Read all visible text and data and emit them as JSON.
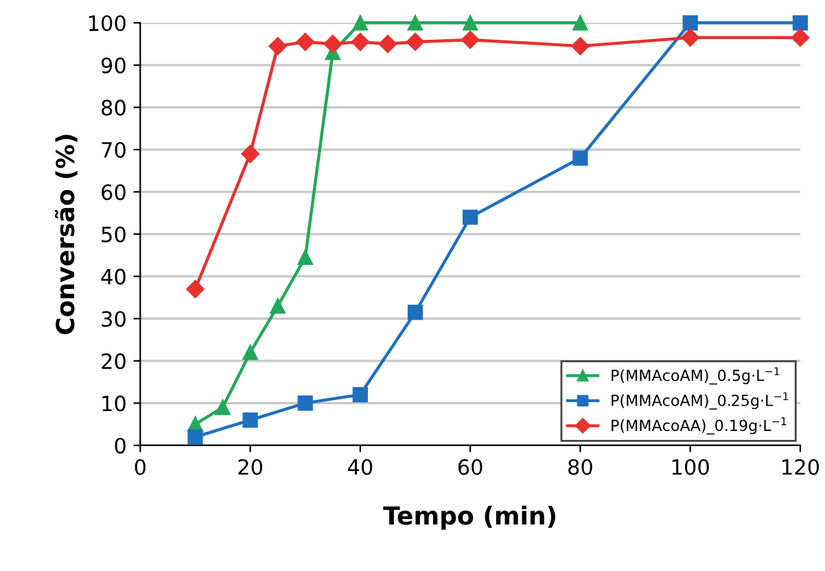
{
  "chart_data": {
    "type": "line",
    "xlabel": "Tempo (min)",
    "ylabel": "Conversão (%)",
    "xlim": [
      0,
      120
    ],
    "xticks": [
      0,
      20,
      40,
      60,
      80,
      100,
      120
    ],
    "ylim": [
      0,
      100
    ],
    "yticks": [
      0,
      10,
      20,
      30,
      40,
      50,
      60,
      70,
      80,
      90,
      100
    ],
    "grid": "y",
    "legend": "bottom right",
    "line_style": "solid",
    "series": [
      {
        "name": "P(MMAcoAM)_0.5g·L$^{−1}$",
        "color": "#22a85a",
        "marker": "triangle",
        "x": [
          10,
          15,
          20,
          25,
          30,
          35,
          40,
          50,
          60,
          80
        ],
        "values": [
          5,
          9,
          22,
          33,
          44.5,
          93,
          100,
          100,
          100,
          100
        ]
      },
      {
        "name": "P(MMAcoAM)_0.25g·L$^{−1}$",
        "color": "#1f6fbf",
        "marker": "square",
        "x": [
          10,
          20,
          30,
          40,
          50,
          60,
          80,
          100,
          120
        ],
        "values": [
          2,
          6,
          10,
          12,
          31.5,
          54,
          68,
          100,
          100
        ]
      },
      {
        "name": "P(MMAcoAA)_0.19g·L$^{−1}$",
        "color": "#e8302e",
        "marker": "diamond",
        "x": [
          10,
          20,
          25,
          30,
          35,
          40,
          45,
          50,
          60,
          80,
          100,
          120
        ],
        "values": [
          37,
          69,
          94.5,
          95.5,
          95,
          95.5,
          95,
          95.5,
          96,
          94.5,
          96.5,
          96.5
        ]
      }
    ]
  }
}
